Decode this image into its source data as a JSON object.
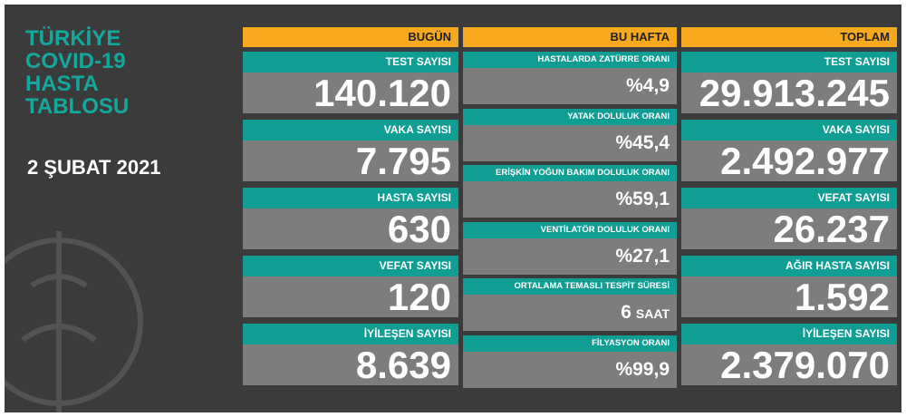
{
  "header": {
    "title_lines": [
      "TÜRKİYE",
      "COVID-19",
      "HASTA",
      "TABLOSU"
    ],
    "date": "2 ŞUBAT 2021"
  },
  "columns": [
    {
      "header": "BUGÜN",
      "rows": [
        {
          "label": "TEST SAYISI",
          "value": "140.120"
        },
        {
          "label": "VAKA SAYISI",
          "value": "7.795"
        },
        {
          "label": "HASTA SAYISI",
          "value": "630"
        },
        {
          "label": "VEFAT SAYISI",
          "value": "120"
        },
        {
          "label": "İYİLEŞEN SAYISI",
          "value": "8.639"
        }
      ]
    },
    {
      "header": "BU HAFTA",
      "rows": [
        {
          "label": "HASTALARDA ZATÜRRE ORANI",
          "value": "%4,9"
        },
        {
          "label": "YATAK DOLULUK ORANI",
          "value": "%45,4"
        },
        {
          "label": "ERİŞKİN YOĞUN BAKIM DOLULUK ORANI",
          "value": "%59,1"
        },
        {
          "label": "VENTİLATÖR DOLULUK ORANI",
          "value": "%27,1"
        },
        {
          "label": "ORTALAMA TEMASLI TESPİT SÜRESİ",
          "value": "6",
          "unit": "SAAT"
        },
        {
          "label": "FİLYASYON ORANI",
          "value": "%99,9"
        }
      ]
    },
    {
      "header": "TOPLAM",
      "rows": [
        {
          "label": "TEST SAYISI",
          "value": "29.913.245"
        },
        {
          "label": "VAKA SAYISI",
          "value": "2.492.977"
        },
        {
          "label": "VEFAT SAYISI",
          "value": "26.237"
        },
        {
          "label": "AĞIR HASTA SAYISI",
          "value": "1.592"
        },
        {
          "label": "İYİLEŞEN SAYISI",
          "value": "2.379.070"
        }
      ]
    }
  ]
}
